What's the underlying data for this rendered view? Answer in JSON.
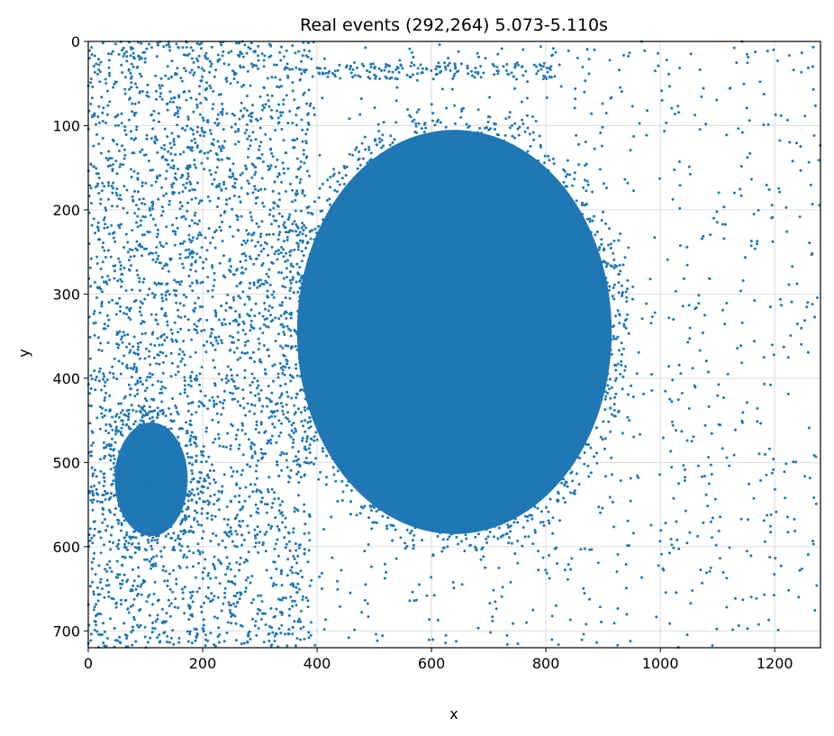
{
  "chart_data": {
    "type": "scatter",
    "title": "Real events (292,264) 5.073-5.110s",
    "xlabel": "x",
    "ylabel": "y",
    "xlim": [
      0,
      1280
    ],
    "ylim": [
      0,
      720
    ],
    "y_inverted": true,
    "x_ticks": [
      0,
      200,
      400,
      600,
      800,
      1000,
      1200
    ],
    "y_ticks": [
      0,
      100,
      200,
      300,
      400,
      500,
      600,
      700
    ],
    "grid": true,
    "point_color": "#1f77b4",
    "series": [
      {
        "values_description_clusters": [
          {
            "kind": "dense-ellipse",
            "center": [
              640,
              345
            ],
            "radius": [
              275,
              240
            ]
          },
          {
            "kind": "dense-ellipse",
            "center": [
              110,
              520
            ],
            "radius": [
              75,
              75
            ]
          },
          {
            "kind": "moderate-region",
            "x_range": [
              0,
              390
            ],
            "y_range": [
              0,
              720
            ]
          },
          {
            "kind": "sparse-region",
            "x_range": [
              0,
              1280
            ],
            "y_range": [
              0,
              720
            ]
          }
        ]
      }
    ]
  }
}
